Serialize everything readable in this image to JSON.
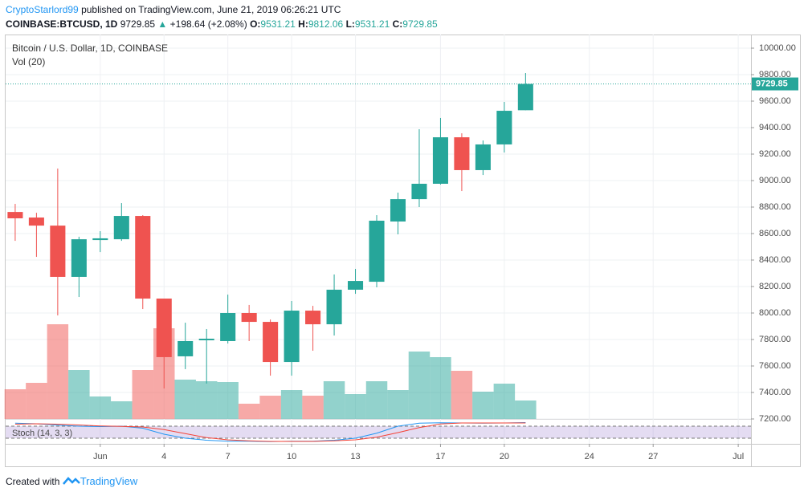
{
  "header": {
    "author": "CryptoStarlord99",
    "published": "published on TradingView.com, June 21, 2019 06:26:21 UTC",
    "symbol": "COINBASE:BTCUSD, 1D",
    "change": "+198.64 (+2.08%)",
    "open_label": "O:",
    "high_label": "H:",
    "low_label": "L:",
    "close_label": "C:"
  },
  "chart_data": {
    "type": "candlestick",
    "title": "Bitcoin / U.S. Dollar, 1D, COINBASE",
    "x": [
      0,
      1,
      2,
      3,
      4,
      5,
      6,
      7,
      8,
      9,
      10,
      11,
      12,
      13,
      14,
      15,
      16,
      17,
      18,
      19,
      20,
      21,
      22,
      23,
      24
    ],
    "open": [
      8763,
      8721,
      8660,
      8273,
      8551,
      8557,
      8733,
      8109,
      7673,
      7794,
      7788,
      8000,
      7933,
      7630,
      8018,
      7915,
      8176,
      8236,
      8691,
      8860,
      8976,
      9327,
      9079,
      9273,
      9531.21
    ],
    "high": [
      8824,
      8757,
      9091,
      8576,
      8618,
      8830,
      8739,
      8109,
      7927,
      7879,
      8139,
      8061,
      7951,
      8091,
      8054,
      8291,
      8333,
      8739,
      8909,
      9388,
      9473,
      9357,
      9303,
      9594,
      9812.06
    ],
    "low": [
      8545,
      8424,
      7982,
      8121,
      8460,
      8545,
      8030,
      7430,
      7576,
      7467,
      7770,
      7788,
      7527,
      7527,
      7715,
      7830,
      8145,
      8194,
      8594,
      8800,
      8970,
      8921,
      9042,
      9212,
      9531.21
    ],
    "close": [
      8715,
      8660,
      8273,
      8557,
      8564,
      8733,
      8109,
      7667,
      7788,
      7806,
      8000,
      7933,
      7630,
      8018,
      7915,
      8176,
      8242,
      8697,
      8860,
      8976,
      9327,
      9079,
      9273,
      9527,
      9729.85
    ],
    "up_color": "#26a69a",
    "down_color": "#ef5350",
    "volume": {
      "name": "Vol (20)",
      "values": [
        37,
        45,
        118,
        61,
        28,
        22,
        61,
        113,
        49,
        47,
        46,
        19,
        29,
        36,
        29,
        47,
        31,
        47,
        36,
        84,
        77,
        60,
        34,
        44,
        23
      ],
      "vlim": [
        0,
        479
      ],
      "up_color": "rgba(38,166,154,0.5)",
      "down_color": "rgba(239,83,80,0.5)"
    },
    "stoch": {
      "name": "Stoch (14, 3, 3)",
      "k": [
        95,
        92,
        85,
        80,
        78,
        80,
        70,
        40,
        20,
        10,
        5,
        5,
        3,
        5,
        5,
        10,
        20,
        45,
        80,
        95,
        97,
        96,
        95,
        96,
        98
      ],
      "d": [
        90,
        92,
        90,
        86,
        81,
        79,
        76,
        63,
        43,
        23,
        12,
        7,
        4,
        4,
        4,
        7,
        12,
        25,
        48,
        73,
        91,
        96,
        96,
        96,
        96
      ],
      "k_color": "#2196f3",
      "d_color": "#f44336",
      "ylim": [
        -8,
        112
      ],
      "bands": [
        20,
        80
      ]
    },
    "xlim": [
      -0.45,
      34.6
    ],
    "xticks": [
      {
        "value": 4,
        "label": "Jun"
      },
      {
        "value": 7,
        "label": "4"
      },
      {
        "value": 10,
        "label": "7"
      },
      {
        "value": 13,
        "label": "10"
      },
      {
        "value": 16,
        "label": "13"
      },
      {
        "value": 20,
        "label": "17"
      },
      {
        "value": 23,
        "label": "20"
      },
      {
        "value": 27,
        "label": "24"
      },
      {
        "value": 30,
        "label": "27"
      },
      {
        "value": 34,
        "label": "Jul"
      }
    ],
    "ylim": [
      7200,
      10103
    ],
    "yticks": [
      {
        "value": 7200,
        "label": "7200.00"
      },
      {
        "value": 7400,
        "label": "7400.00"
      },
      {
        "value": 7600,
        "label": "7600.00"
      },
      {
        "value": 7800,
        "label": "7800.00"
      },
      {
        "value": 8000,
        "label": "8000.00"
      },
      {
        "value": 8200,
        "label": "8200.00"
      },
      {
        "value": 8400,
        "label": "8400.00"
      },
      {
        "value": 8600,
        "label": "8600.00"
      },
      {
        "value": 8800,
        "label": "8800.00"
      },
      {
        "value": 9000,
        "label": "9000.00"
      },
      {
        "value": 9200,
        "label": "9200.00"
      },
      {
        "value": 9400,
        "label": "9400.00"
      },
      {
        "value": 9600,
        "label": "9600.00"
      },
      {
        "value": 9800,
        "label": "9800.00"
      },
      {
        "value": 10000,
        "label": "10000.00"
      }
    ],
    "grid": true
  },
  "footer": {
    "text": "Created with",
    "brand": "TradingView"
  }
}
